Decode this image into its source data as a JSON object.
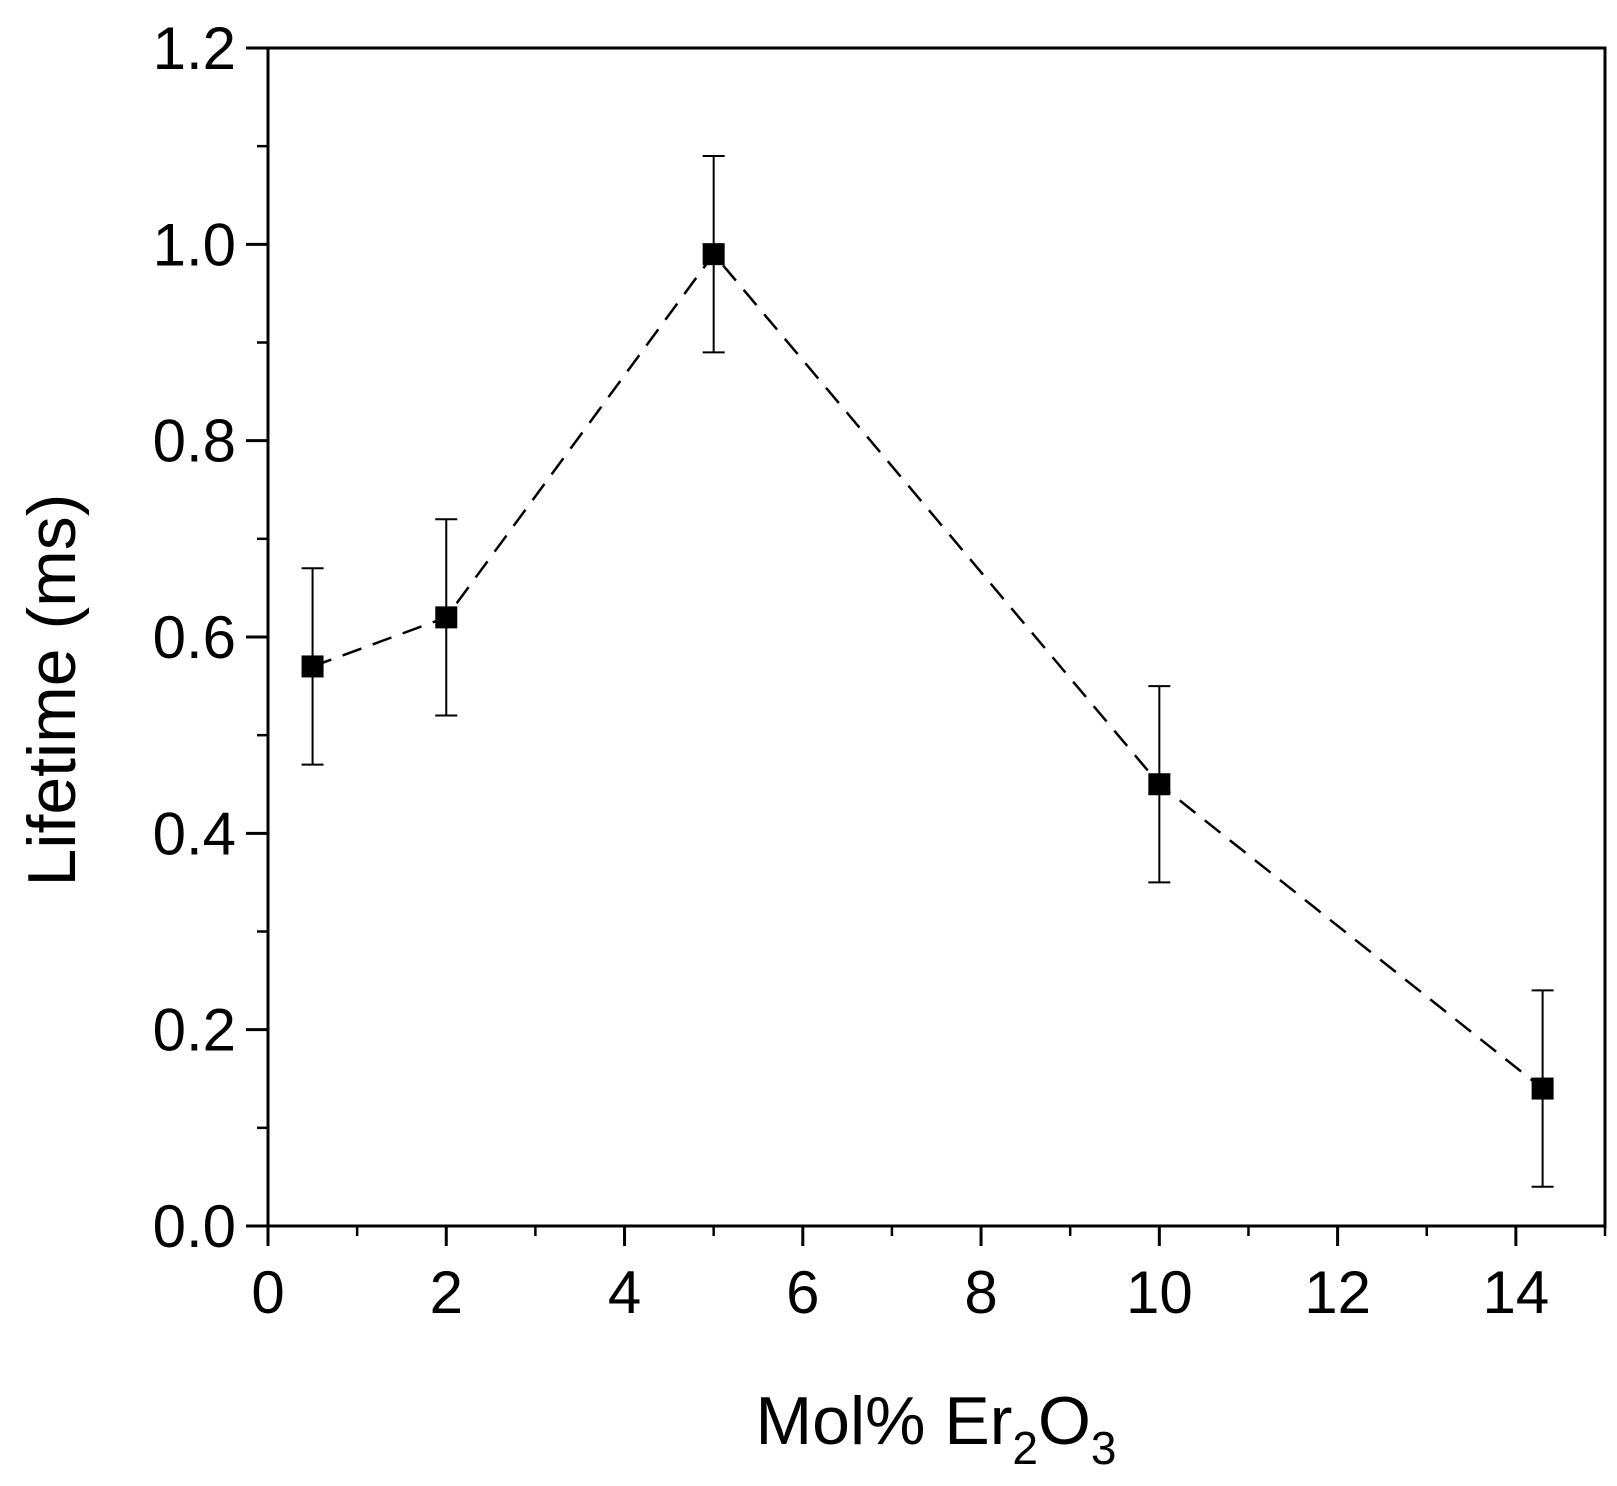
{
  "chart_data": {
    "type": "scatter",
    "xlabel": "Mol% Er",
    "xlabel_sub1": "2",
    "xlabel_mid": "O",
    "xlabel_sub2": "3",
    "ylabel": "Lifetime (ms)",
    "xlim": [
      0,
      15
    ],
    "ylim": [
      0,
      1.2
    ],
    "x_ticks": [
      0,
      2,
      4,
      6,
      8,
      10,
      12,
      14
    ],
    "y_ticks": [
      0.0,
      0.2,
      0.4,
      0.6,
      0.8,
      1.0,
      1.2
    ],
    "x_minor_step": 1,
    "y_minor_step": 0.1,
    "line_style": "dashed",
    "marker": "square",
    "color": "#000000",
    "grid": false,
    "series": [
      {
        "x": [
          0.5,
          2,
          5,
          10,
          14.3
        ],
        "y": [
          0.57,
          0.62,
          0.99,
          0.45,
          0.14
        ],
        "error": [
          0.1,
          0.1,
          0.1,
          0.1,
          0.1
        ]
      }
    ]
  }
}
